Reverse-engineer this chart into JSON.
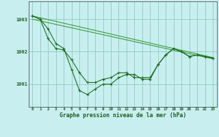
{
  "xlabel": "Graphe pression niveau de la mer (hPa)",
  "background_color": "#c8eef0",
  "grid_color": "#88ccbb",
  "line_color_dark": "#1a6b1a",
  "line_color_light": "#3a9b3a",
  "xlim": [
    -0.5,
    23.5
  ],
  "ylim": [
    1000.3,
    1003.55
  ],
  "yticks": [
    1001,
    1002,
    1003
  ],
  "xticks": [
    0,
    1,
    2,
    3,
    4,
    5,
    6,
    7,
    8,
    9,
    10,
    11,
    12,
    13,
    14,
    15,
    16,
    17,
    18,
    19,
    20,
    21,
    22,
    23
  ],
  "series1": [
    1003.1,
    1003.0,
    1002.4,
    1002.1,
    1002.05,
    1001.75,
    1001.35,
    1001.05,
    1001.05,
    1001.15,
    1001.2,
    1001.35,
    1001.35,
    1001.2,
    1001.2,
    1001.2,
    1001.6,
    1001.9,
    1002.1,
    1002.0,
    1001.85,
    1001.9,
    1001.85,
    1001.8
  ],
  "series2": [
    1003.1,
    1003.0,
    1002.7,
    1002.25,
    1002.1,
    1001.45,
    1000.8,
    1000.68,
    1000.85,
    1001.0,
    1001.0,
    1001.2,
    1001.3,
    1001.3,
    1001.15,
    1001.15,
    1001.6,
    1001.9,
    1002.1,
    1002.0,
    1001.85,
    1001.9,
    1001.85,
    1001.8
  ],
  "line1_x": [
    0,
    23
  ],
  "line1_y": [
    1003.1,
    1001.82
  ],
  "line2_x": [
    0,
    23
  ],
  "line2_y": [
    1003.0,
    1001.78
  ]
}
